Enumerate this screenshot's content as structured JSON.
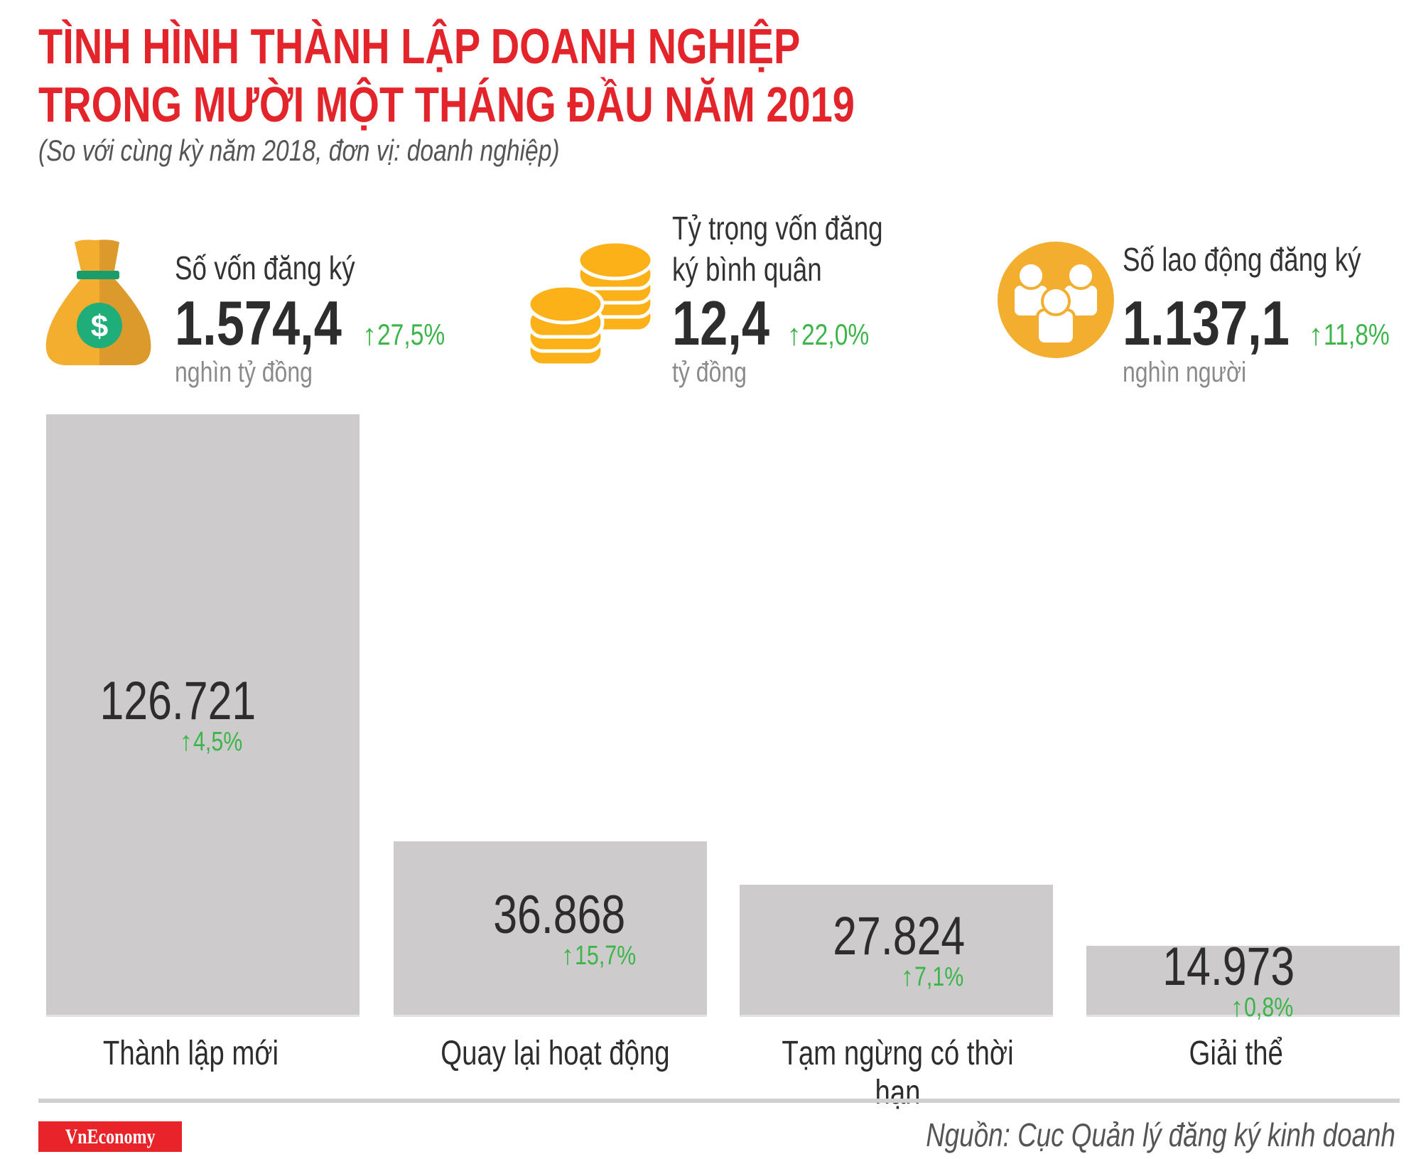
{
  "header": {
    "title_line1": "TÌNH HÌNH THÀNH LẬP DOANH NGHIỆP",
    "title_line2": "TRONG MƯỜI MỘT THÁNG ĐẦU NĂM 2019",
    "subtitle": "(So với cùng kỳ năm 2018, đơn vị: doanh nghiệp)"
  },
  "stats": [
    {
      "icon": "money-bag-icon",
      "label_line1": "Số vốn đăng ký",
      "label_line2": "",
      "value": "1.574,4",
      "change": "27,5%",
      "unit": "nghìn tỷ đồng"
    },
    {
      "icon": "coins-icon",
      "label_line1": "Tỷ trọng vốn đăng",
      "label_line2": "ký bình quân",
      "value": "12,4",
      "change": "22,0%",
      "unit": "tỷ đồng"
    },
    {
      "icon": "people-icon",
      "label_line1": "Số lao động đăng ký",
      "label_line2": "",
      "value": "1.137,1",
      "change": "11,8%",
      "unit": "nghìn người"
    }
  ],
  "colors": {
    "title": "#e3242b",
    "bar": "#cdcbcc",
    "increase": "#3cb64a",
    "icon": "#f3ae2f",
    "brand": "#e8232a"
  },
  "chart_data": {
    "type": "bar",
    "categories": [
      "Thành lập mới",
      "Quay lại hoạt động",
      "Tạm ngừng có thời hạn",
      "Giải thể"
    ],
    "values": [
      126721,
      36868,
      27824,
      14973
    ],
    "value_labels": [
      "126.721",
      "36.868",
      "27.824",
      "14.973"
    ],
    "changes": [
      "4,5%",
      "15,7%",
      "7,1%",
      "0,8%"
    ],
    "change_direction": "up",
    "ylim": [
      0,
      126721
    ],
    "grid": false,
    "legend": "none"
  },
  "footer": {
    "logo": "VnEconomy",
    "source": "Nguồn: Cục Quản lý đăng ký kinh doanh"
  }
}
